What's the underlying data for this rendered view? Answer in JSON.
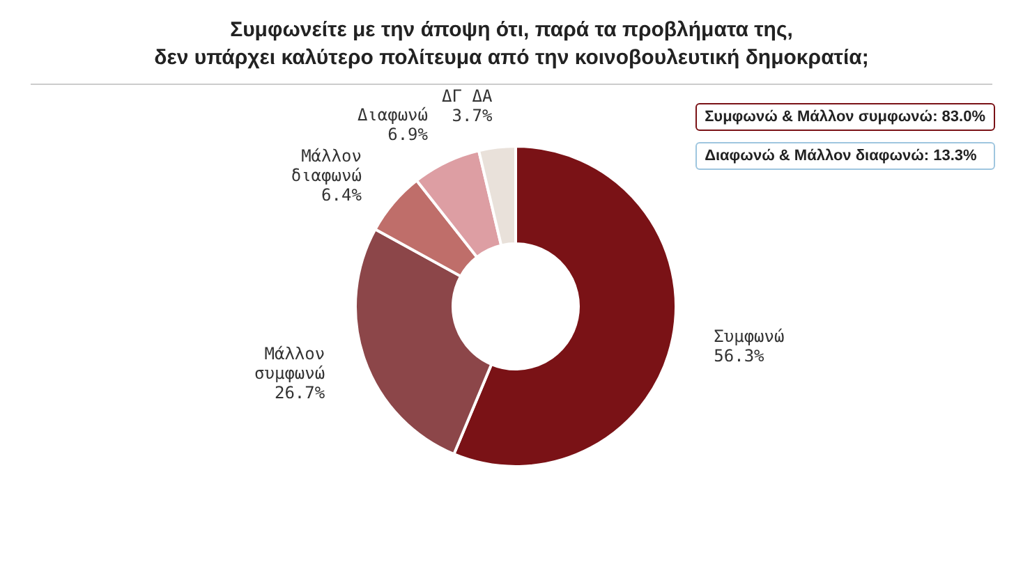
{
  "chart_data": {
    "type": "donut",
    "title": "Συμφωνείτε με την άποψη ότι, παρά τα προβλήματα της,\nδεν υπάρχει καλύτερο πολίτευμα από την κοινοβουλευτική δημοκρατία;",
    "categories": [
      "Συμφωνώ",
      "Μάλλον συμφωνώ",
      "Μάλλον διαφωνώ",
      "Διαφωνώ",
      "ΔΓ ΔΑ"
    ],
    "values": [
      56.3,
      26.7,
      6.4,
      6.9,
      3.7
    ],
    "value_labels": [
      "56.3%",
      "26.7%",
      "6.4%",
      "6.9%",
      "3.7%"
    ],
    "colors": [
      "#7a1216",
      "#8c4649",
      "#bf6e6a",
      "#dd9ea3",
      "#e9e1da"
    ],
    "annotations": [
      "Συμφωνώ & Μάλλον συμφωνώ: 83.0%",
      "Διαφωνώ & Μάλλον διαφωνώ: 13.3%"
    ]
  }
}
